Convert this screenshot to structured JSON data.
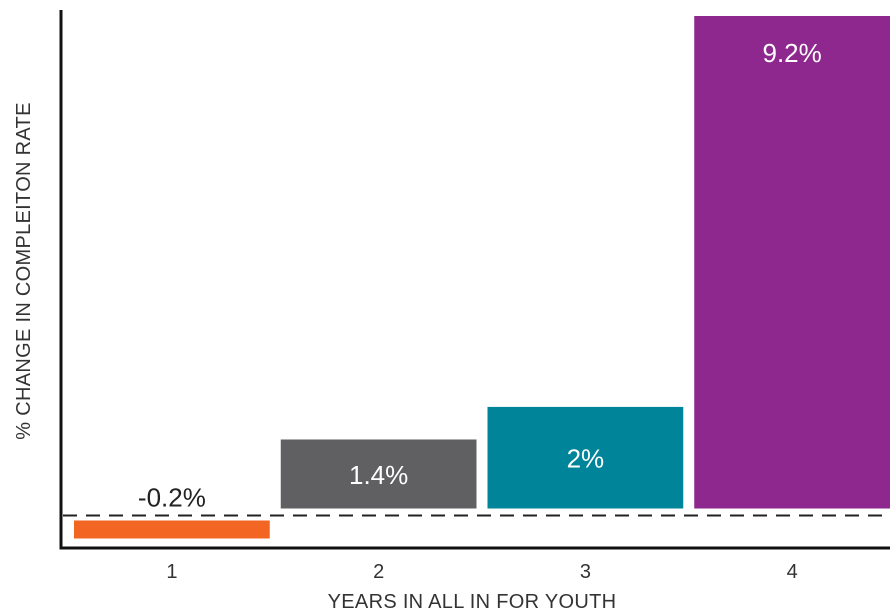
{
  "chart_data": {
    "type": "bar",
    "title": "",
    "xlabel": "YEARS IN ALL IN FOR YOUTH",
    "ylabel": "% CHANGE IN COMPLEITON RATE",
    "categories": [
      "1",
      "2",
      "3",
      "4"
    ],
    "values": [
      -0.2,
      1.4,
      2,
      9.2
    ],
    "data_labels": [
      "-0.2%",
      "1.4%",
      "2%",
      "9.2%"
    ],
    "colors": [
      "#F26522",
      "#606062",
      "#00849A",
      "#8E278E"
    ],
    "label_colors": [
      "#222222",
      "#ffffff",
      "#ffffff",
      "#ffffff"
    ],
    "ylim": [
      -0.6,
      9.2
    ],
    "baseline": 0,
    "baseline_style": "dashed",
    "grid": false,
    "legend": "none"
  }
}
